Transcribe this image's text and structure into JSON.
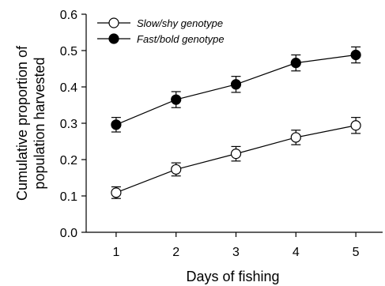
{
  "chart_data": {
    "type": "line",
    "title": "",
    "xlabel": "Days of fishing",
    "ylabel_lines": [
      "Cumulative proportion of",
      "population harvested"
    ],
    "x": [
      1,
      2,
      3,
      4,
      5
    ],
    "xlim": [
      0.5,
      5.5
    ],
    "ylim": [
      0,
      0.6
    ],
    "x_ticks": [
      "1",
      "2",
      "3",
      "4",
      "5"
    ],
    "y_ticks": [
      "0.0",
      "0.1",
      "0.2",
      "0.3",
      "0.4",
      "0.5",
      "0.6"
    ],
    "grid": false,
    "legend_position": "top-left",
    "series": [
      {
        "name": "Slow/shy genotype",
        "marker": "open-circle",
        "color": "#000000",
        "values": [
          0.109,
          0.173,
          0.216,
          0.261,
          0.294
        ],
        "error": [
          0.016,
          0.018,
          0.02,
          0.02,
          0.022
        ]
      },
      {
        "name": "Fast/bold genotype",
        "marker": "filled-circle",
        "color": "#000000",
        "values": [
          0.296,
          0.365,
          0.407,
          0.466,
          0.488
        ],
        "error": [
          0.02,
          0.022,
          0.022,
          0.022,
          0.022
        ]
      }
    ]
  }
}
